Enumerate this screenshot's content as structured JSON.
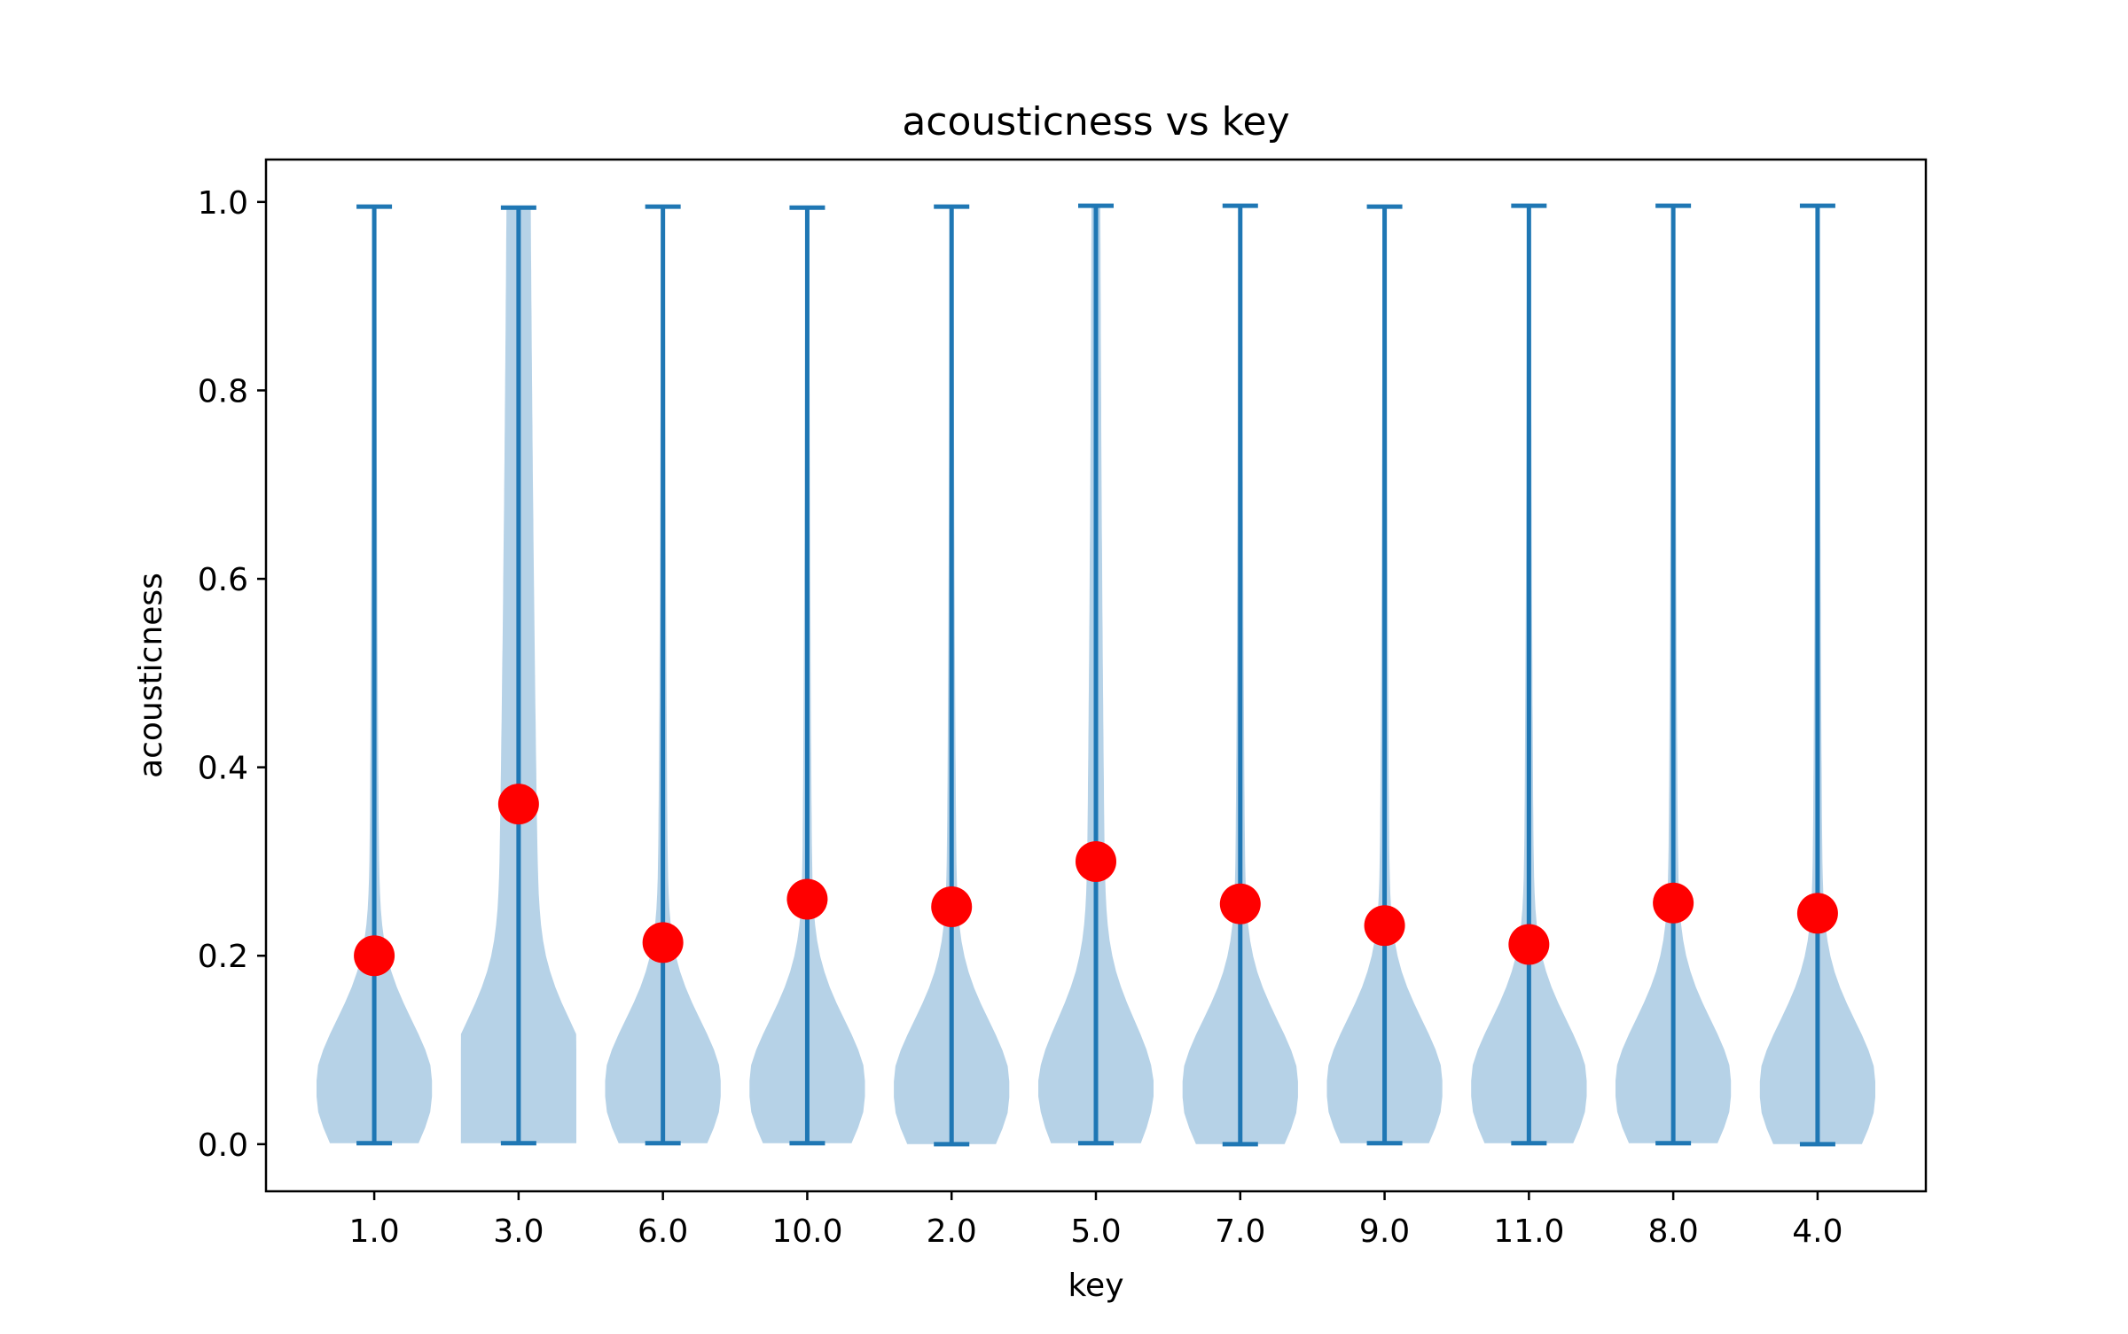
{
  "chart_data": {
    "type": "violin",
    "title": "acousticness vs key",
    "xlabel": "key",
    "ylabel": "acousticness",
    "categories": [
      "1.0",
      "3.0",
      "6.0",
      "10.0",
      "2.0",
      "5.0",
      "7.0",
      "9.0",
      "11.0",
      "8.0",
      "4.0"
    ],
    "ylim": [
      -0.05,
      1.045
    ],
    "yticks": [
      "0.0",
      "0.2",
      "0.4",
      "0.6",
      "0.8",
      "1.0"
    ],
    "ytick_values": [
      0.0,
      0.2,
      0.4,
      0.6,
      0.8,
      1.0
    ],
    "mins": [
      0.001,
      0.001,
      0.001,
      0.001,
      0.0,
      0.001,
      0.0,
      0.001,
      0.001,
      0.001,
      0.0
    ],
    "maxs": [
      0.995,
      0.994,
      0.995,
      0.994,
      0.995,
      0.996,
      0.996,
      0.995,
      0.996,
      0.996,
      0.996
    ],
    "means": [
      0.2,
      0.361,
      0.214,
      0.26,
      0.252,
      0.3,
      0.255,
      0.232,
      0.212,
      0.256,
      0.245
    ],
    "grid": false,
    "legend": "none",
    "colors": {
      "violin_body": "#b6d2e7",
      "violin_lines": "#1f77b4",
      "mean_marker": "#ff0000",
      "axes": "#000000"
    }
  }
}
